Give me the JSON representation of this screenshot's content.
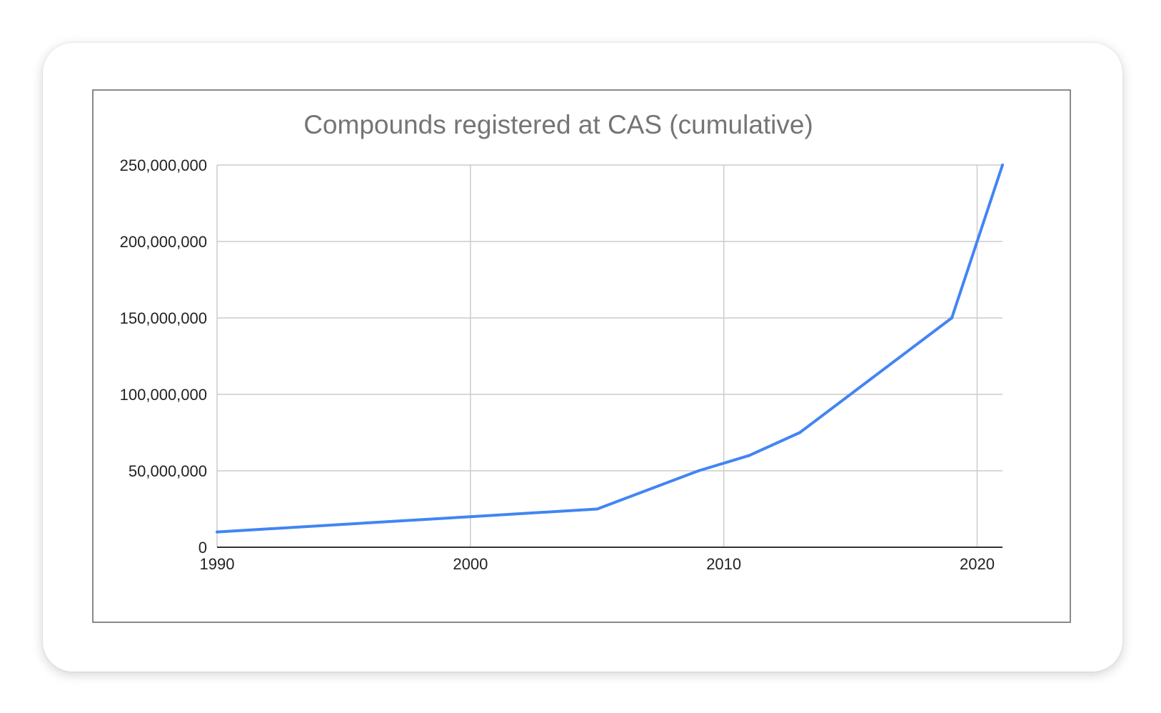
{
  "chart_data": {
    "type": "line",
    "title": "Compounds registered at CAS (cumulative)",
    "xlabel": "",
    "ylabel": "",
    "xlim": [
      1990,
      2021
    ],
    "ylim": [
      0,
      250000000
    ],
    "x_ticks": [
      {
        "value": 1990,
        "label": "1990"
      },
      {
        "value": 2000,
        "label": "2000"
      },
      {
        "value": 2010,
        "label": "2010"
      },
      {
        "value": 2020,
        "label": "2020"
      }
    ],
    "y_ticks": [
      {
        "value": 0,
        "label": "0"
      },
      {
        "value": 50000000,
        "label": "50,000,000"
      },
      {
        "value": 100000000,
        "label": "100,000,000"
      },
      {
        "value": 150000000,
        "label": "150,000,000"
      },
      {
        "value": 200000000,
        "label": "200,000,000"
      },
      {
        "value": 250000000,
        "label": "250,000,000"
      }
    ],
    "grid": true,
    "legend": "none",
    "series": [
      {
        "color": "#4285f4",
        "points": [
          {
            "x": 1990,
            "y": 10000000
          },
          {
            "x": 2000,
            "y": 20000000
          },
          {
            "x": 2005,
            "y": 25000000
          },
          {
            "x": 2009,
            "y": 50000000
          },
          {
            "x": 2011,
            "y": 60000000
          },
          {
            "x": 2013,
            "y": 75000000
          },
          {
            "x": 2019,
            "y": 150000000
          },
          {
            "x": 2021,
            "y": 250000000
          }
        ]
      }
    ]
  }
}
